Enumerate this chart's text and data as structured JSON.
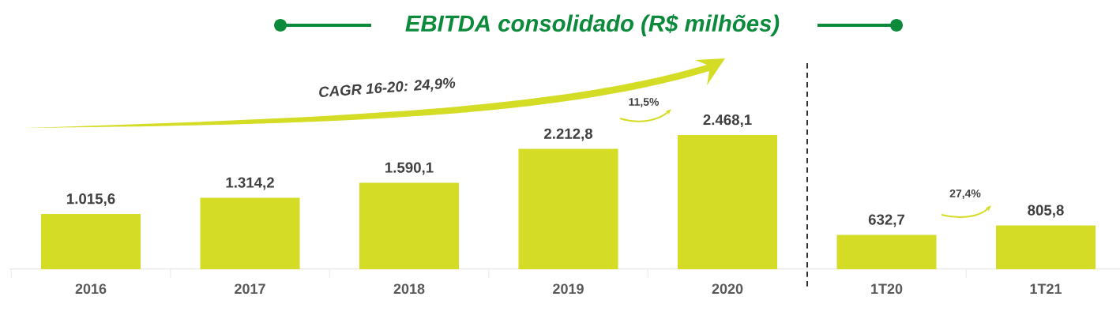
{
  "chart_data": {
    "type": "bar",
    "title": "EBITDA consolidado (R$ milhões)",
    "categories": [
      "2016",
      "2017",
      "2018",
      "2019",
      "2020",
      "1T20",
      "1T21"
    ],
    "values": [
      1015.6,
      1314.2,
      1590.1,
      2212.8,
      2468.1,
      632.7,
      805.8
    ],
    "value_labels": [
      "1.015,6",
      "1.314,2",
      "1.590,1",
      "2.212,8",
      "2.468,1",
      "632,7",
      "805,8"
    ],
    "color": "#d4dc26",
    "tick_labels": "x",
    "annotations": [
      "CAGR 16-20: 24,9%",
      "11,5%",
      "27,4%"
    ]
  }
}
